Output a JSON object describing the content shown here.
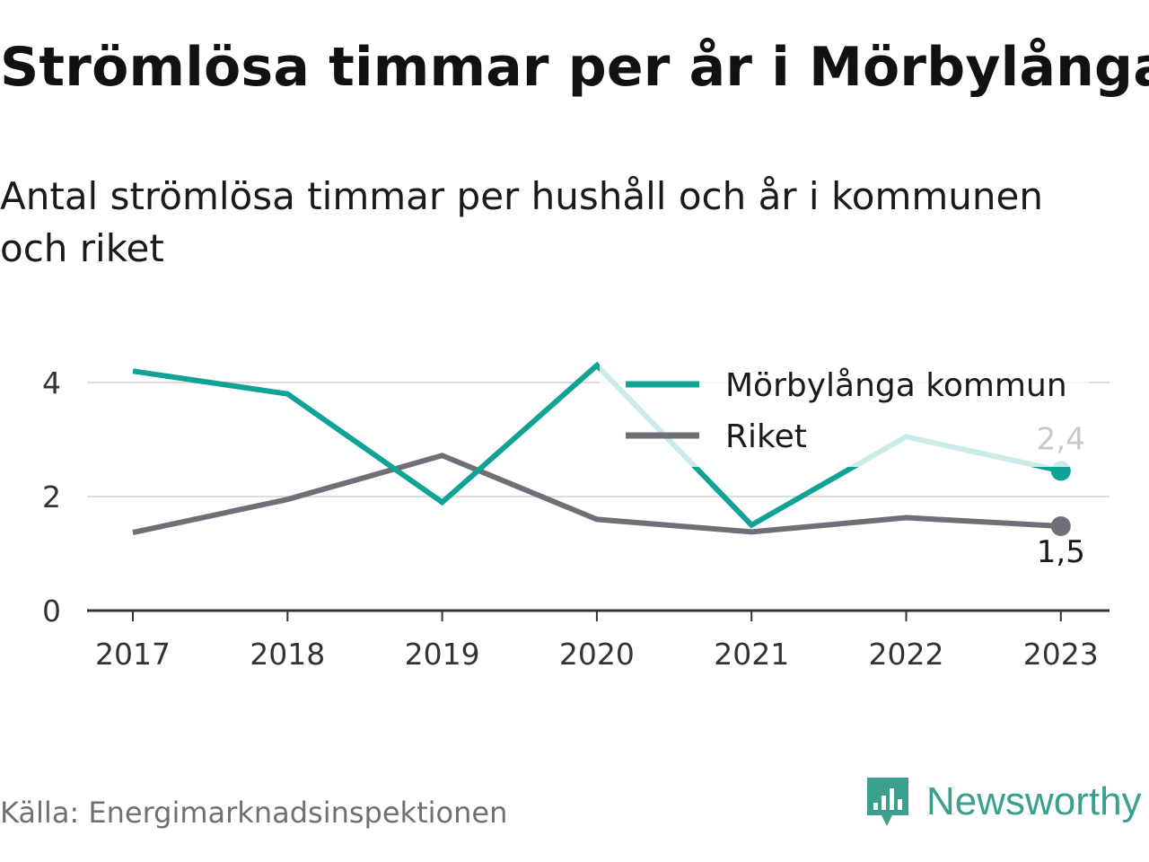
{
  "title": "Strömlösa timmar per år i Mörbylånga",
  "subtitle": "Antal strömlösa timmar per hushåll och år i kommunen och riket",
  "source": "Källa: Energimarknadsinspektionen",
  "brand": {
    "name": "Newsworthy",
    "icon": "newsworthy-logo-icon",
    "color": "#3a9f8d"
  },
  "chart_data": {
    "type": "line",
    "x": [
      "2017",
      "2018",
      "2019",
      "2020",
      "2021",
      "2022",
      "2023"
    ],
    "yticks": [
      "0",
      "2",
      "4"
    ],
    "ylim": [
      0,
      4.4
    ],
    "grid": true,
    "legend": "top-right",
    "series": [
      {
        "name": "Mörbylånga kommun",
        "color": "#0fa295",
        "values": [
          4.2,
          3.8,
          1.9,
          4.3,
          1.5,
          3.05,
          2.45
        ],
        "end_label": "2,4"
      },
      {
        "name": "Riket",
        "color": "#6f6f78",
        "values": [
          1.37,
          1.95,
          2.72,
          1.6,
          1.38,
          1.63,
          1.48
        ],
        "end_label": "1,5"
      }
    ]
  }
}
